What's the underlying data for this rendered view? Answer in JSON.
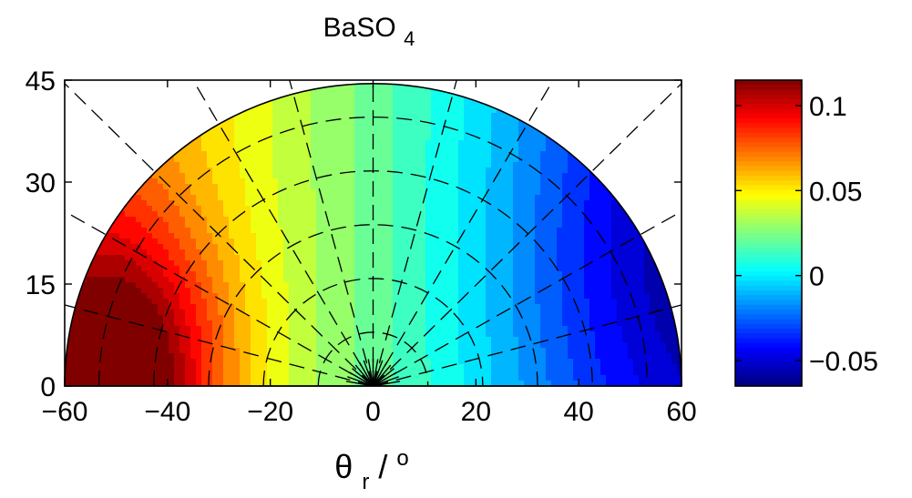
{
  "chart_data": {
    "type": "heatmap",
    "subtype": "polar-half-disc-contour",
    "title": {
      "main": "BaSO",
      "subscript": "4"
    },
    "xlabel": {
      "symbol": "θ",
      "subscript": "r",
      "slash": "/",
      "superscript": "o"
    },
    "xlim": [
      -60,
      60
    ],
    "ylim": [
      0,
      45
    ],
    "x_ticks": [
      {
        "value": -60,
        "label": "−60"
      },
      {
        "value": -40,
        "label": "−40"
      },
      {
        "value": -20,
        "label": "−20"
      },
      {
        "value": 0,
        "label": "0"
      },
      {
        "value": 20,
        "label": "20"
      },
      {
        "value": 40,
        "label": "40"
      },
      {
        "value": 60,
        "label": "60"
      }
    ],
    "y_ticks": [
      {
        "value": 0,
        "label": "0"
      },
      {
        "value": 15,
        "label": "15"
      },
      {
        "value": 30,
        "label": "30"
      },
      {
        "value": 45,
        "label": "45"
      }
    ],
    "colorbar": {
      "colormap": "jet",
      "range": [
        -0.065,
        0.115
      ],
      "ticks": [
        {
          "value": 0.1,
          "label": "0.1"
        },
        {
          "value": 0.05,
          "label": "0.05"
        },
        {
          "value": 0,
          "label": "0"
        },
        {
          "value": -0.05,
          "label": "−0.05"
        }
      ]
    },
    "field": {
      "peak_value": 0.11,
      "peak_position": [
        -48,
        2
      ],
      "trough_value": -0.06,
      "trough_position": [
        55,
        20
      ],
      "contour_levels": 24
    },
    "grid": {
      "style": "dashed",
      "radii": [
        8,
        16,
        24,
        32,
        40
      ],
      "spoke_angles_deg": [
        15,
        30,
        45,
        60,
        75,
        90,
        105,
        120,
        135,
        150,
        165
      ],
      "radial_lines_from": 0
    }
  }
}
